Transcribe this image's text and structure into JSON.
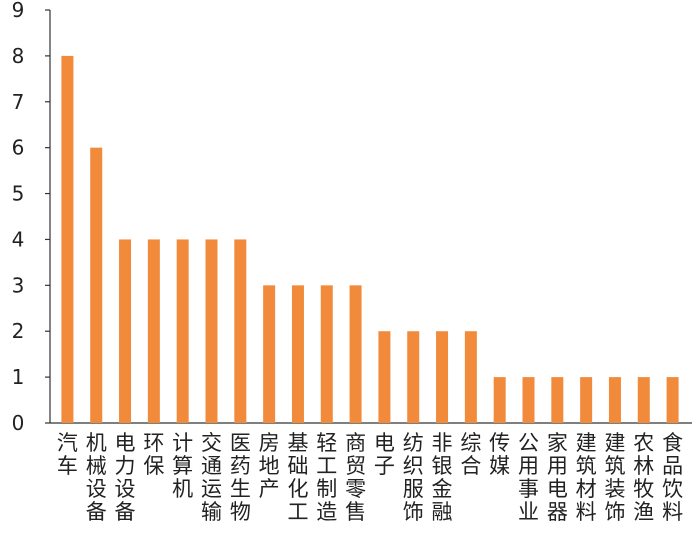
{
  "chart_data": {
    "type": "bar",
    "title": "",
    "xlabel": "",
    "ylabel": "",
    "ylim": [
      0,
      9
    ],
    "yticks": [
      0,
      1,
      2,
      3,
      4,
      5,
      6,
      7,
      8,
      9
    ],
    "grid": false,
    "bar_color": "#F28A3C",
    "categories": [
      "汽车",
      "机械设备",
      "电力设备",
      "环保",
      "计算机",
      "交通运输",
      "医药生物",
      "房地产",
      "基础化工",
      "轻工制造",
      "商贸零售",
      "电子",
      "纺织服饰",
      "非银金融",
      "综合",
      "传媒",
      "公用事业",
      "家用电器",
      "建筑材料",
      "建筑装饰",
      "农林牧渔",
      "食品饮料"
    ],
    "values": [
      8,
      6,
      4,
      4,
      4,
      4,
      4,
      3,
      3,
      3,
      3,
      2,
      2,
      2,
      2,
      1,
      1,
      1,
      1,
      1,
      1,
      1
    ]
  }
}
